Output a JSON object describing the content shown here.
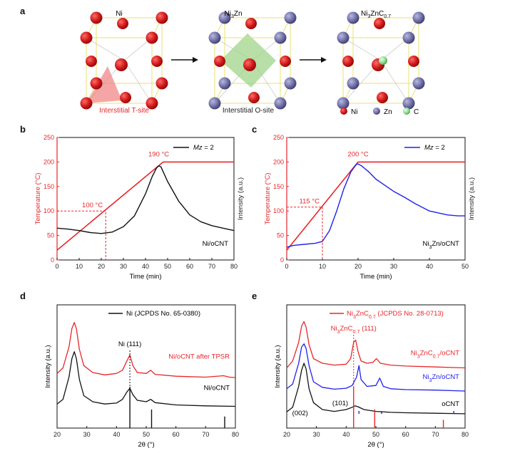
{
  "colors": {
    "red": "#e8262a",
    "blue": "#2020ee",
    "black": "#111111",
    "ni_atom": "#d01818",
    "zn_atom": "#6e6ea6",
    "c_atom": "#8fdc8f"
  },
  "panel_a": {
    "letter": "a",
    "structures": [
      "Ni",
      "Ni",
      "Ni"
    ],
    "titles": [
      {
        "main": "Ni",
        "sub": "",
        "tail": ""
      },
      {
        "main": "Ni",
        "sub": "3",
        "tail": "Zn"
      },
      {
        "main": "Ni",
        "sub": "3",
        "tail": "ZnC",
        "sub2": "0.7"
      }
    ],
    "site_labels": [
      "Interstitial T-site",
      "Interstitial O-site"
    ],
    "legend": [
      "Ni",
      "Zn",
      "C"
    ]
  },
  "chart_data": [
    {
      "panel": "b",
      "type": "line",
      "xlabel": "Time (min)",
      "ylabel_left": "Temperature (°C)",
      "ylabel_right": "Intensity (a.u.)",
      "xlim": [
        0,
        80
      ],
      "ylim": [
        0,
        250
      ],
      "xticks": [
        0,
        10,
        20,
        30,
        40,
        50,
        60,
        70,
        80
      ],
      "yticks": [
        0,
        50,
        100,
        150,
        200,
        250
      ],
      "series": [
        {
          "name": "",
          "axis": "left",
          "color": "#e8262a",
          "x": [
            0,
            48,
            80
          ],
          "y": [
            20,
            200,
            200
          ]
        },
        {
          "name": "Mz = 2",
          "axis": "right",
          "color": "#111111",
          "x": [
            0,
            5,
            10,
            15,
            20,
            25,
            30,
            35,
            40,
            43,
            45,
            46,
            47,
            48,
            50,
            55,
            60,
            65,
            70,
            75,
            80
          ],
          "y": [
            65,
            63,
            60,
            56,
            54,
            57,
            68,
            90,
            135,
            170,
            188,
            192,
            190,
            180,
            160,
            120,
            92,
            78,
            70,
            65,
            60
          ]
        }
      ],
      "legend": {
        "label_main": "Mz",
        "label_tail": " = 2"
      },
      "annotations": [
        {
          "text": "190 °C",
          "x": 46,
          "y": 200
        },
        {
          "text": "100 °C",
          "x": 22,
          "y": 100
        }
      ],
      "corner_label": "Ni/oCNT"
    },
    {
      "panel": "c",
      "type": "line",
      "xlabel": "Time (min)",
      "ylabel_left": "Temperature (°C)",
      "ylabel_right": "Intensity (a.u.)",
      "xlim": [
        0,
        50
      ],
      "ylim": [
        0,
        250
      ],
      "xticks": [
        0,
        10,
        20,
        30,
        40,
        50
      ],
      "yticks": [
        0,
        50,
        100,
        150,
        200,
        250
      ],
      "series": [
        {
          "name": "",
          "axis": "left",
          "color": "#e8262a",
          "x": [
            0,
            20,
            50
          ],
          "y": [
            20,
            200,
            200
          ]
        },
        {
          "name": "Mz = 2",
          "axis": "right",
          "color": "#2020ee",
          "x": [
            0,
            2,
            5,
            8,
            10,
            12,
            14,
            16,
            18,
            19.5,
            20,
            21,
            23,
            25,
            28,
            30,
            33,
            36,
            40,
            45,
            48,
            50
          ],
          "y": [
            26,
            30,
            32,
            34,
            38,
            60,
            100,
            145,
            180,
            195,
            196,
            192,
            180,
            165,
            150,
            140,
            128,
            115,
            100,
            92,
            90,
            90
          ]
        }
      ],
      "legend": {
        "label_main": "Mz",
        "label_tail": " = 2"
      },
      "annotations": [
        {
          "text": "200 °C",
          "x": 20,
          "y": 200
        },
        {
          "text": "115 °C",
          "x": 10,
          "y": 108
        }
      ],
      "corner_label": {
        "main": "Ni",
        "sub": "3",
        "tail": "Zn/oCNT"
      }
    },
    {
      "panel": "d",
      "type": "line",
      "xlabel": "2θ (°)",
      "ylabel": "Intensity (a.u.)",
      "xlim": [
        20,
        80
      ],
      "xticks": [
        20,
        30,
        40,
        50,
        60,
        70,
        80
      ],
      "legend": "Ni (JCPDS No. 65-0380)",
      "peak_label": "Ni (111)",
      "series": [
        {
          "name": "Ni/oCNT after TPSR",
          "color": "#e8262a",
          "x": [
            20,
            22,
            24,
            25,
            25.8,
            26.5,
            27.5,
            29,
            32,
            36,
            40,
            42,
            43.5,
            44.5,
            45.5,
            47,
            50,
            51.5,
            53,
            60,
            70,
            76,
            78,
            80
          ],
          "y": [
            118,
            130,
            175,
            215,
            228,
            215,
            170,
            135,
            120,
            115,
            118,
            125,
            145,
            158,
            135,
            120,
            118,
            125,
            116,
            112,
            110,
            113,
            110,
            109
          ]
        },
        {
          "name": "Ni/oCNT",
          "color": "#111111",
          "x": [
            20,
            22,
            24,
            25,
            25.8,
            26.5,
            27.5,
            29,
            32,
            36,
            40,
            42,
            43.5,
            44.5,
            45.5,
            47,
            50,
            51.5,
            53,
            60,
            70,
            80
          ],
          "y": [
            52,
            62,
            110,
            150,
            165,
            150,
            105,
            70,
            57,
            52,
            54,
            62,
            78,
            86,
            72,
            60,
            57,
            62,
            55,
            50,
            48,
            47
          ]
        }
      ],
      "reference_lines": {
        "color": "#111111",
        "x": [
          44.5,
          51.8,
          76.4
        ],
        "h": [
          1.0,
          0.45,
          0.28
        ]
      }
    },
    {
      "panel": "e",
      "type": "line",
      "xlabel": "2θ (°)",
      "ylabel": "Intensity (a.u.)",
      "xlim": [
        20,
        80
      ],
      "xticks": [
        20,
        30,
        40,
        50,
        60,
        70,
        80
      ],
      "legend": {
        "main": "Ni",
        "sub": "3",
        "tail": "ZnC",
        "sub2": "0.7",
        "rest": " (JCPDS No. 28-0713)"
      },
      "peak_label": {
        "main": "Ni",
        "sub": "3",
        "tail": "ZnC",
        "sub2": "0.7",
        "rest": " (111)"
      },
      "peak_labels_bottom": [
        "(002)",
        "(101)"
      ],
      "series": [
        {
          "name": "Ni3ZnC0.7/oCNT",
          "color": "#e8262a",
          "x": [
            20,
            22,
            24,
            25,
            25.8,
            26.5,
            27.5,
            29,
            32,
            36,
            40,
            41.5,
            42.5,
            43.2,
            44,
            45,
            47,
            49,
            50.2,
            51.5,
            55,
            60,
            70,
            80
          ],
          "y": [
            130,
            145,
            185,
            220,
            230,
            218,
            180,
            150,
            140,
            136,
            138,
            150,
            185,
            190,
            165,
            145,
            140,
            142,
            150,
            140,
            136,
            134,
            132,
            130
          ]
        },
        {
          "name": "Ni3Zn/oCNT",
          "color": "#2020ee",
          "x": [
            20,
            22,
            24,
            25,
            25.8,
            26.5,
            27.5,
            29,
            32,
            36,
            40,
            42,
            43.5,
            44.3,
            45,
            47,
            50,
            51.3,
            52.5,
            55,
            60,
            70,
            80
          ],
          "y": [
            85,
            95,
            140,
            175,
            182,
            172,
            135,
            100,
            88,
            84,
            86,
            92,
            110,
            135,
            105,
            90,
            92,
            108,
            90,
            85,
            83,
            82,
            80
          ]
        },
        {
          "name": "oCNT",
          "color": "#111111",
          "x": [
            20,
            22,
            24,
            25,
            25.8,
            26.5,
            27.5,
            29,
            32,
            36,
            40,
            42,
            43,
            44,
            46,
            50,
            55,
            60,
            70,
            80
          ],
          "y": [
            35,
            45,
            90,
            125,
            140,
            128,
            85,
            55,
            40,
            36,
            40,
            45,
            48,
            46,
            40,
            36,
            34,
            33,
            32,
            31
          ]
        }
      ],
      "reference_lines": {
        "color": "#e8262a",
        "x": [
          42.5,
          49.6,
          72.7
        ],
        "h": [
          1.0,
          0.45,
          0.2
        ]
      },
      "blue_markers_x": [
        44.3,
        51.9,
        76.2
      ]
    }
  ]
}
